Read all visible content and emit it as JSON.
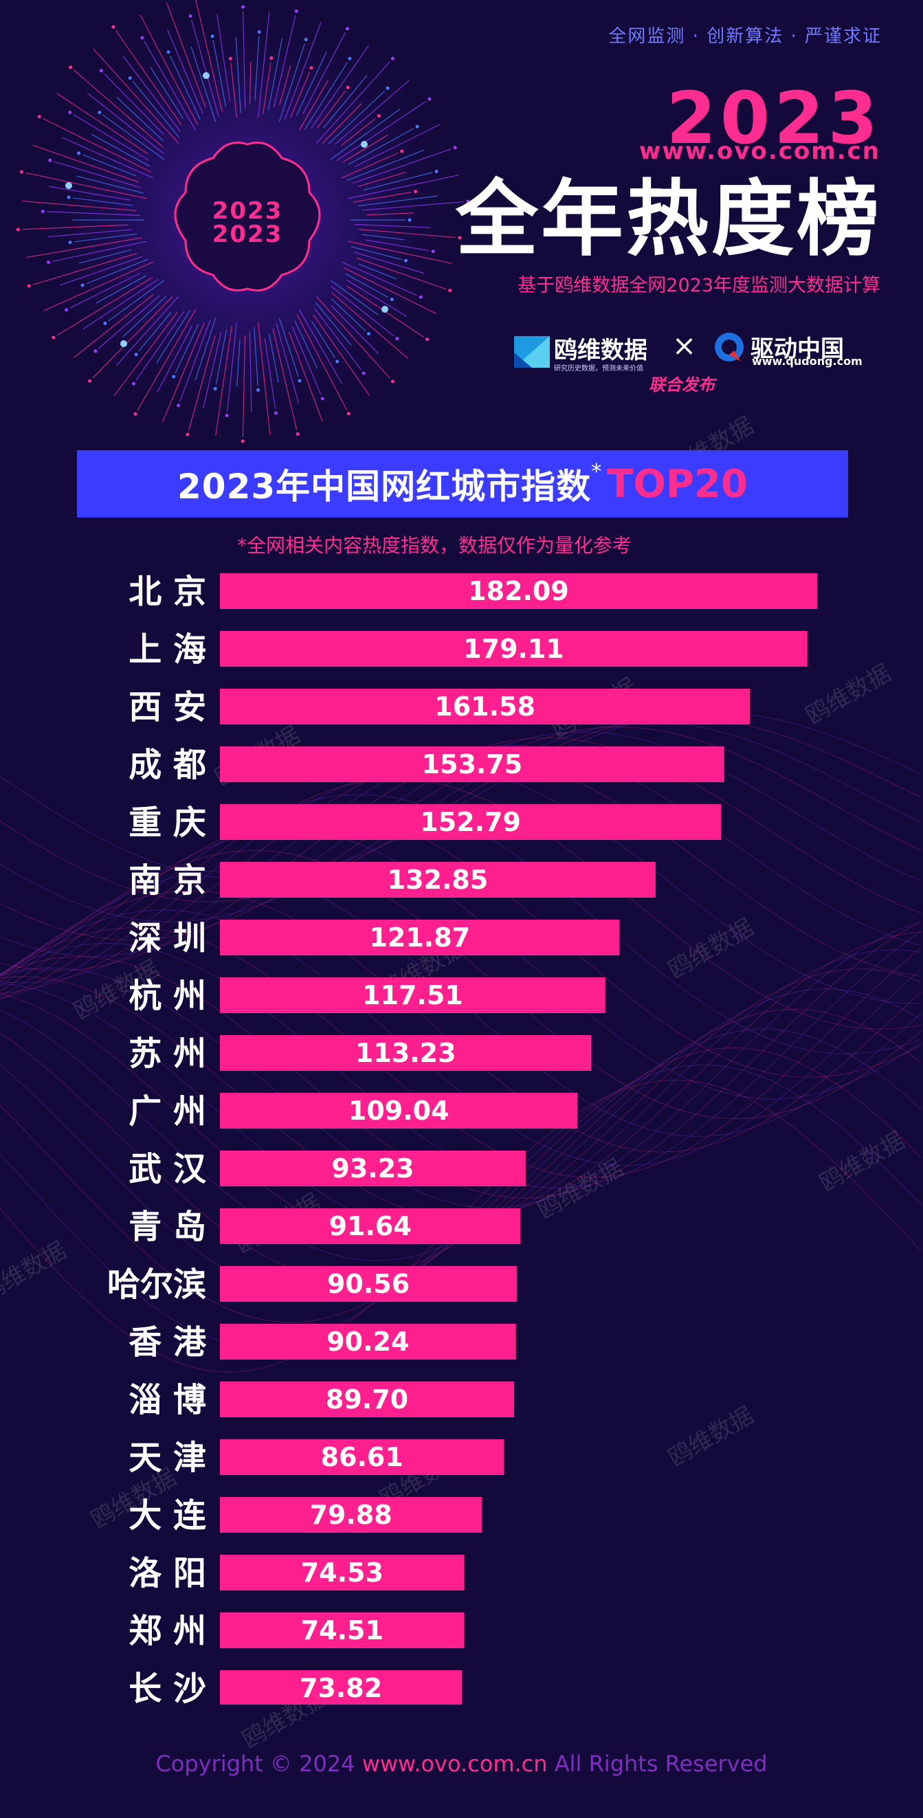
{
  "header": {
    "tagline": "全网监测 · 创新算法 · 严谨求证",
    "year": "2023",
    "site": "www.ovo.com.cn",
    "title": "全年热度榜",
    "subtitle": "基于鸥维数据全网2023年度监测大数据计算",
    "partner_a_name": "鸥维数据",
    "partner_a_tagline": "研究历史数据，预测未来价值",
    "times_symbol": "×",
    "partner_b_name": "驱动中国",
    "partner_b_url": "www.qudong.com",
    "joint_release": "联合发布",
    "badge_year": "2023"
  },
  "banner": {
    "title": "2023年中国网红城市指数",
    "star": "*",
    "top": "TOP20"
  },
  "note": "*全网相关内容热度指数，数据仅作为量化参考",
  "watermark": "鸥维数据",
  "footer": {
    "copyright": "Copyright © 2024",
    "url": "www.ovo.com.cn",
    "rights": "All Rights Reserved"
  },
  "colors": {
    "background": "#13093a",
    "bar": "#ff1f8e",
    "banner": "#3b3cff",
    "accent": "#ff2d8f"
  },
  "chart_data": {
    "type": "bar",
    "orientation": "horizontal",
    "categories": [
      "北 京",
      "上 海",
      "西 安",
      "成 都",
      "重 庆",
      "南 京",
      "深 圳",
      "杭 州",
      "苏 州",
      "广 州",
      "武 汉",
      "青 岛",
      "哈尔滨",
      "香 港",
      "淄 博",
      "天 津",
      "大 连",
      "洛 阳",
      "郑 州",
      "长 沙"
    ],
    "values": [
      182.09,
      179.11,
      161.58,
      153.75,
      152.79,
      132.85,
      121.87,
      117.51,
      113.23,
      109.04,
      93.23,
      91.64,
      90.56,
      90.24,
      89.7,
      86.61,
      79.88,
      74.53,
      74.51,
      73.82
    ],
    "value_labels": [
      "182.09",
      "179.11",
      "161.58",
      "153.75",
      "152.79",
      "132.85",
      "121.87",
      "117.51",
      "113.23",
      "109.04",
      "93.23",
      "91.64",
      "90.56",
      "90.24",
      "89.70",
      "86.61",
      "79.88",
      "74.53",
      "74.51",
      "73.82"
    ],
    "title": "2023年中国网红城市指数",
    "xlabel": "",
    "ylabel": "",
    "grid": false,
    "legend": "none"
  }
}
